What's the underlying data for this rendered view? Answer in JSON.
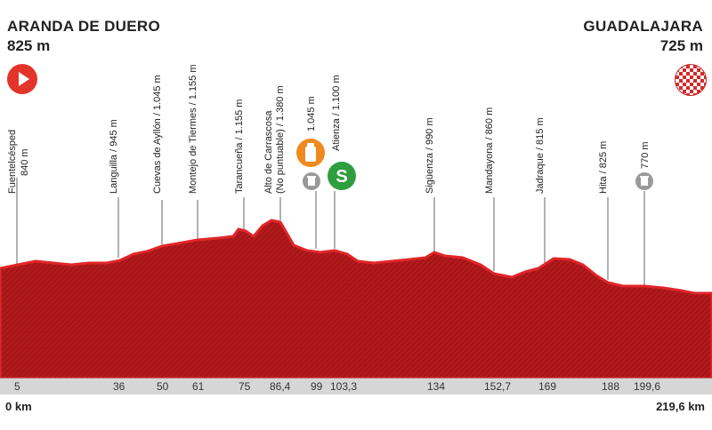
{
  "start": {
    "city": "ARANDA DE DUERO",
    "altitude": "825 m"
  },
  "finish": {
    "city": "GUADALAJARA",
    "altitude": "725 m"
  },
  "distance": {
    "start": "0 km",
    "end": "219,6 km"
  },
  "colors": {
    "profile": "#b3191c",
    "profile_top": "#e0262a",
    "sprint": "#2e9e3e",
    "feed": "#f08a1c",
    "start": "#e3342a"
  },
  "icons": {
    "start": "play-icon",
    "finish": "checkered-flag-icon",
    "feed": "feed-bottle-icon",
    "sprint": "sprint-s-icon",
    "bin": "waste-bin-icon"
  },
  "sprint_letter": "S",
  "checkpoints": [
    {
      "km": "5",
      "name": "Fuentelcésped",
      "alt": "840 m"
    },
    {
      "km": "36",
      "name": "Languilla / 945 m"
    },
    {
      "km": "50",
      "name": "Cuevas de Ayllón / 1.045 m"
    },
    {
      "km": "61",
      "name": "Montejo de Tiermes / 1.155 m"
    },
    {
      "km": "75",
      "name": "Tarancueña / 1.155 m"
    },
    {
      "km": "86,4",
      "name": "Alto de Carrascosa",
      "alt": "(No puntuable) / 1.380 m"
    },
    {
      "km": "99",
      "name": "1.045 m"
    },
    {
      "km": "103,3",
      "name": "Atienza / 1.100 m"
    },
    {
      "km": "134",
      "name": "Sigüenza / 990 m"
    },
    {
      "km": "152,7",
      "name": "Mandayona / 860 m"
    },
    {
      "km": "169",
      "name": "Jadraque / 815 m"
    },
    {
      "km": "188",
      "name": "Hita / 825 m"
    },
    {
      "km": "199,6",
      "name": "770 m"
    }
  ]
}
